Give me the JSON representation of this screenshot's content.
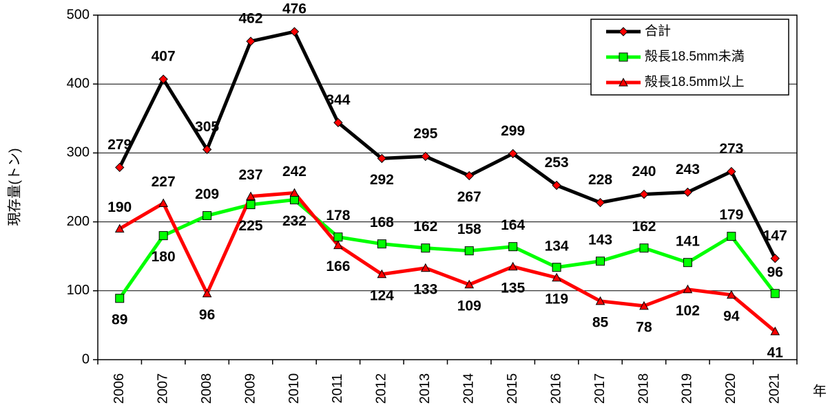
{
  "chart_data": {
    "type": "line",
    "y_label": "現存量(トン)",
    "x_label": "年",
    "categories": [
      "2006",
      "2007",
      "2008",
      "2009",
      "2010",
      "2011",
      "2012",
      "2013",
      "2014",
      "2015",
      "2016",
      "2017",
      "2018",
      "2019",
      "2020",
      "2021"
    ],
    "series": [
      {
        "name": "合計",
        "color": "#000000",
        "marker": "diamond",
        "values": [
          279,
          407,
          305,
          462,
          476,
          344,
          292,
          295,
          267,
          299,
          253,
          228,
          240,
          243,
          273,
          147
        ]
      },
      {
        "name": "殻長18.5mm未満",
        "color": "#00ff00",
        "marker": "square",
        "values": [
          89,
          180,
          209,
          225,
          232,
          178,
          168,
          162,
          158,
          164,
          134,
          143,
          162,
          141,
          179,
          96
        ]
      },
      {
        "name": "殻長18.5mm以上",
        "color": "#ff0000",
        "marker": "triangle",
        "values": [
          190,
          227,
          96,
          237,
          242,
          166,
          124,
          133,
          109,
          135,
          119,
          85,
          78,
          102,
          94,
          41
        ]
      }
    ],
    "ylim": [
      0,
      500
    ],
    "yticks": [
      0,
      100,
      200,
      300,
      400,
      500
    ],
    "grid": true,
    "legend": "top-right"
  }
}
